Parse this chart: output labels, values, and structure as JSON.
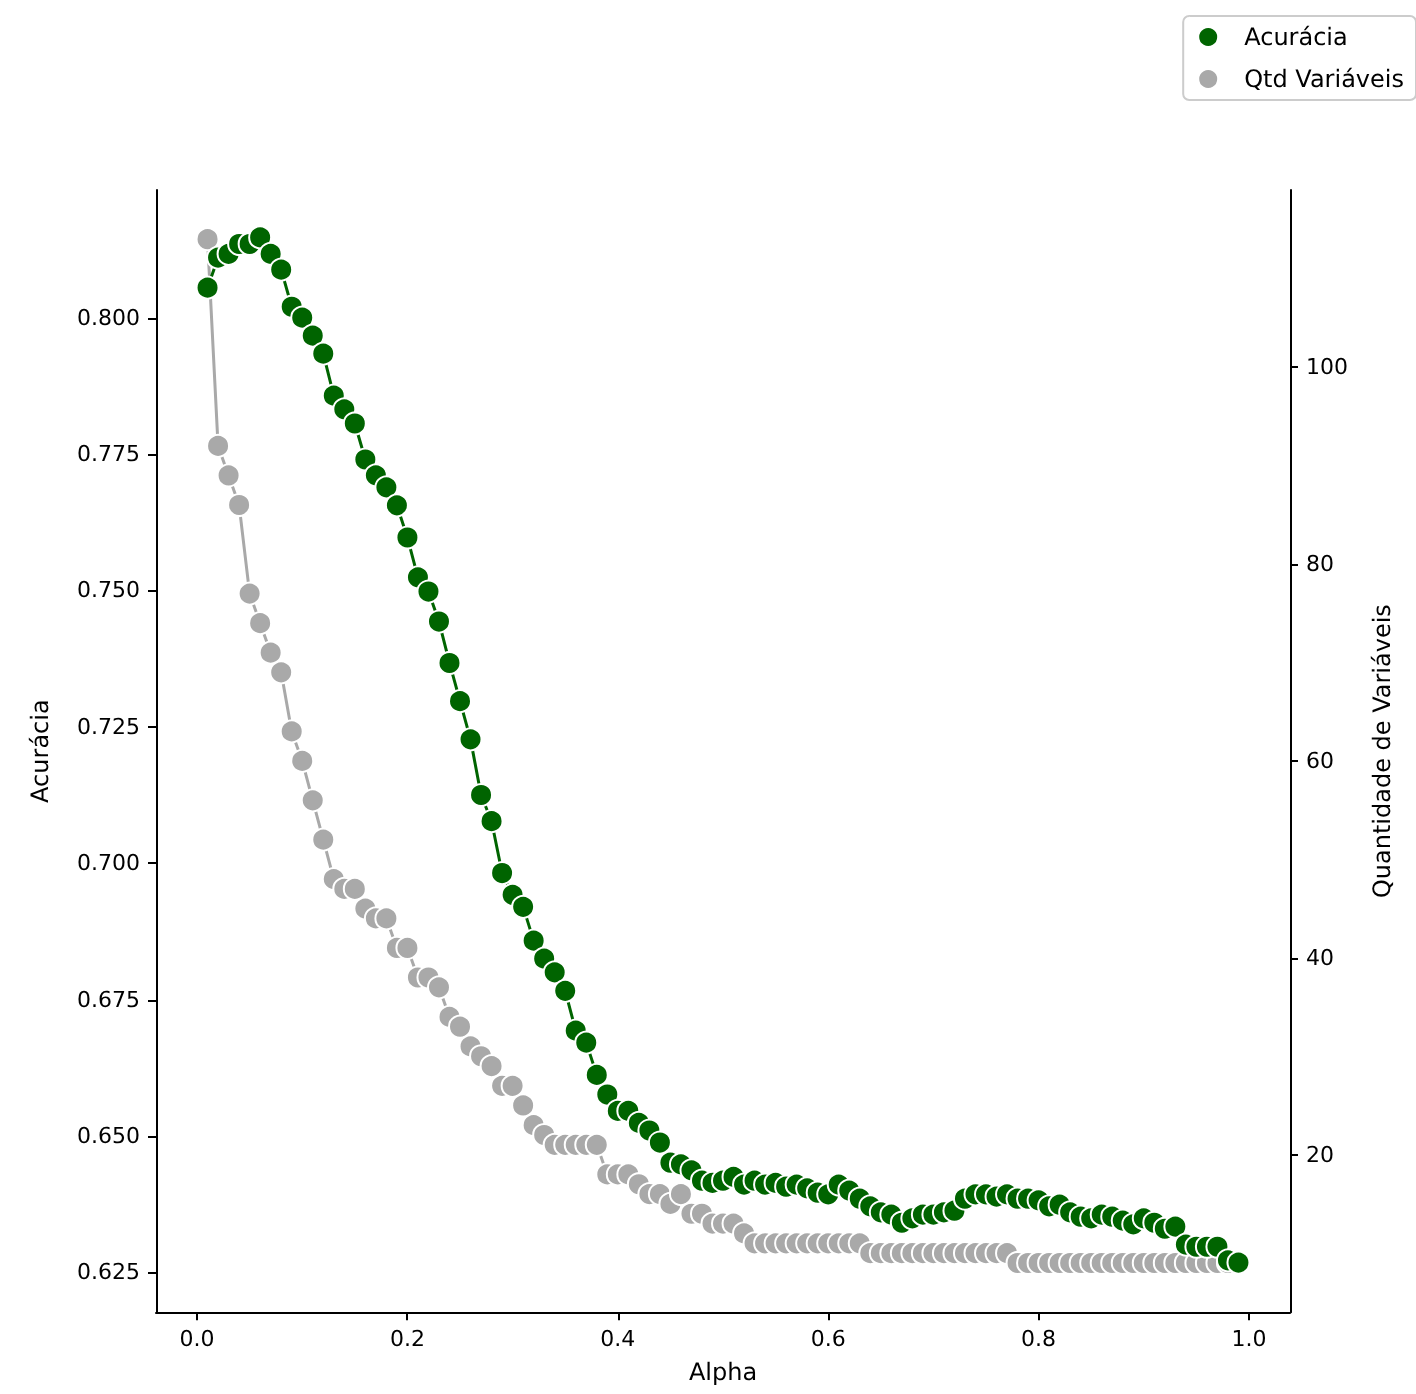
{
  "chart_data": {
    "type": "line",
    "xlabel": "Alpha",
    "ylabel": "Acurácia",
    "y2label": "Quantidade de Variáveis",
    "x": [
      0.01,
      0.02,
      0.03,
      0.04,
      0.05,
      0.06,
      0.07,
      0.08,
      0.09,
      0.1,
      0.11,
      0.12,
      0.13,
      0.14,
      0.15,
      0.16,
      0.17,
      0.18,
      0.19,
      0.2,
      0.21,
      0.22,
      0.23,
      0.24,
      0.25,
      0.26,
      0.27,
      0.28,
      0.29,
      0.3,
      0.31,
      0.32,
      0.33,
      0.34,
      0.35,
      0.36,
      0.37,
      0.38,
      0.39,
      0.4,
      0.41,
      0.42,
      0.43,
      0.44,
      0.45,
      0.46,
      0.47,
      0.48,
      0.49,
      0.5,
      0.51,
      0.52,
      0.53,
      0.54,
      0.55,
      0.56,
      0.57,
      0.58,
      0.59,
      0.6,
      0.61,
      0.62,
      0.63,
      0.64,
      0.65,
      0.66,
      0.67,
      0.68,
      0.69,
      0.7,
      0.71,
      0.72,
      0.73,
      0.74,
      0.75,
      0.76,
      0.77,
      0.78,
      0.79,
      0.8,
      0.81,
      0.82,
      0.83,
      0.84,
      0.85,
      0.86,
      0.87,
      0.88,
      0.89,
      0.9,
      0.91,
      0.92,
      0.93,
      0.94,
      0.95,
      0.96,
      0.97,
      0.98,
      0.99
    ],
    "series": [
      {
        "name": "Acurácia",
        "color": "#006400",
        "values": [
          0.8055,
          0.811,
          0.8117,
          0.8135,
          0.8135,
          0.8147,
          0.8117,
          0.8088,
          0.802,
          0.8,
          0.7967,
          0.7934,
          0.7857,
          0.7832,
          0.7806,
          0.774,
          0.7711,
          0.7689,
          0.7656,
          0.7597,
          0.7524,
          0.7498,
          0.7443,
          0.7367,
          0.7297,
          0.7227,
          0.7125,
          0.7077,
          0.6982,
          0.6942,
          0.692,
          0.6858,
          0.6825,
          0.68,
          0.6766,
          0.6693,
          0.6671,
          0.6612,
          0.6576,
          0.6546,
          0.6546,
          0.6524,
          0.651,
          0.6488,
          0.6451,
          0.6448,
          0.6437,
          0.6418,
          0.6414,
          0.6418,
          0.6425,
          0.6411,
          0.6418,
          0.6411,
          0.6414,
          0.6407,
          0.6411,
          0.6404,
          0.6396,
          0.6393,
          0.6411,
          0.64,
          0.6385,
          0.6371,
          0.636,
          0.6356,
          0.6341,
          0.6349,
          0.6356,
          0.6356,
          0.636,
          0.6363,
          0.6385,
          0.6393,
          0.6393,
          0.6389,
          0.6393,
          0.6385,
          0.6385,
          0.6382,
          0.6371,
          0.6374,
          0.636,
          0.6352,
          0.6349,
          0.6356,
          0.6352,
          0.6345,
          0.6338,
          0.6349,
          0.6341,
          0.633,
          0.6334,
          0.6301,
          0.6297,
          0.6297,
          0.6297,
          0.6272,
          0.6268
        ]
      },
      {
        "name": "Qtd Variáveis",
        "color": "#a9a9a9",
        "axis": "y2",
        "values": [
          113,
          92,
          89,
          86,
          77,
          74,
          71,
          69,
          63,
          60,
          56,
          52,
          48,
          47,
          47,
          45,
          44,
          44,
          41,
          41,
          38,
          38,
          37,
          34,
          33,
          31,
          30,
          29,
          27,
          27,
          25,
          23,
          22,
          21,
          21,
          21,
          21,
          21,
          18,
          18,
          18,
          17,
          16,
          16,
          15,
          16,
          14,
          14,
          13,
          13,
          13,
          12,
          11,
          11,
          11,
          11,
          11,
          11,
          11,
          11,
          11,
          11,
          11,
          10,
          10,
          10,
          10,
          10,
          10,
          10,
          10,
          10,
          10,
          10,
          10,
          10,
          10,
          9,
          9,
          9,
          9,
          9,
          9,
          9,
          9,
          9,
          9,
          9,
          9,
          9,
          9,
          9,
          9,
          9,
          9,
          9,
          9,
          9,
          9
        ]
      }
    ],
    "xlim": [
      -0.039,
      1.039
    ],
    "xticks": [
      {
        "value": 0,
        "label": "0.0"
      },
      {
        "value": 0.2,
        "label": "0.2"
      },
      {
        "value": 0.4,
        "label": "0.4"
      },
      {
        "value": 0.6,
        "label": "0.6"
      },
      {
        "value": 0.8,
        "label": "0.8"
      },
      {
        "value": 1,
        "label": "1.0"
      }
    ],
    "ylim": [
      0.6177,
      0.8234
    ],
    "yticks": [
      {
        "value": 0.625,
        "label": "0.625"
      },
      {
        "value": 0.65,
        "label": "0.650"
      },
      {
        "value": 0.675,
        "label": "0.675"
      },
      {
        "value": 0.7,
        "label": "0.700"
      },
      {
        "value": 0.725,
        "label": "0.725"
      },
      {
        "value": 0.75,
        "label": "0.750"
      },
      {
        "value": 0.775,
        "label": "0.775"
      },
      {
        "value": 0.8,
        "label": "0.800"
      }
    ],
    "y2lim": [
      4,
      118
    ],
    "y2ticks": [
      20,
      40,
      60,
      80,
      100
    ],
    "marker": "circle",
    "line_style": "solid",
    "grid": false,
    "legend": "top right"
  }
}
